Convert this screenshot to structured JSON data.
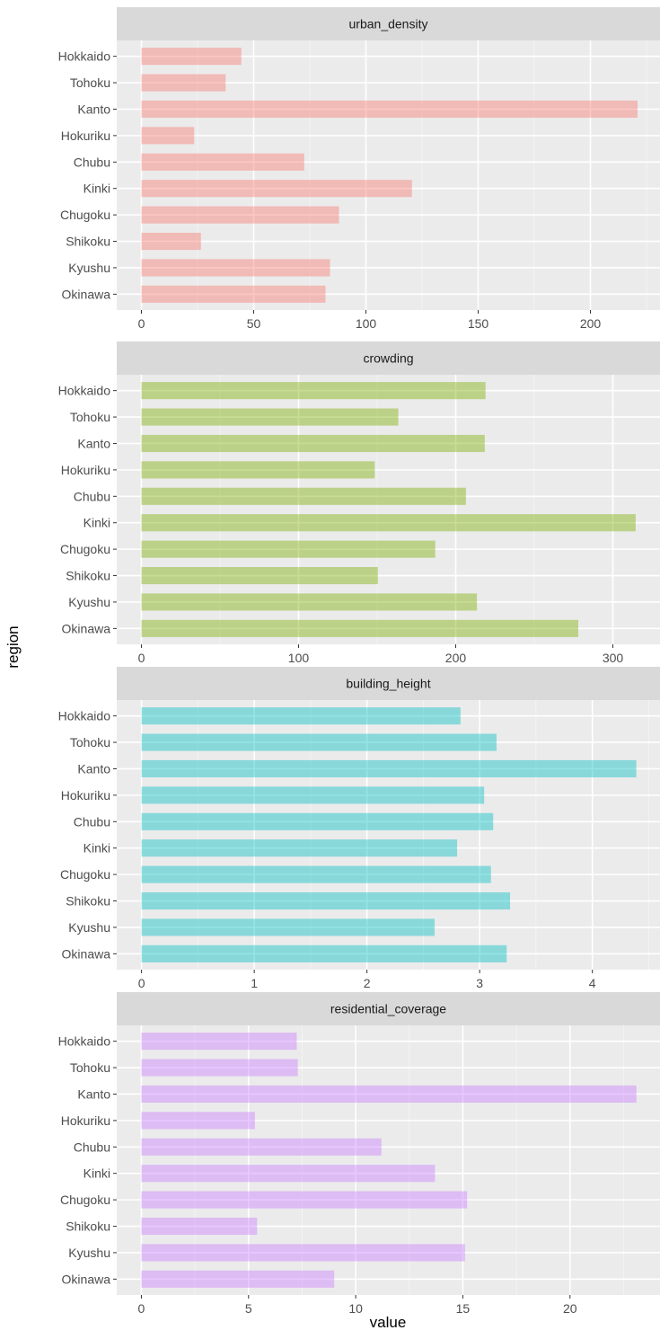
{
  "chart_data": {
    "type": "bar",
    "orientation": "horizontal",
    "faceted": true,
    "xlabel": "value",
    "ylabel": "region",
    "grid": true,
    "legend": "none",
    "categories": [
      "Hokkaido",
      "Tohoku",
      "Kanto",
      "Hokuriku",
      "Chubu",
      "Kinki",
      "Chugoku",
      "Shikoku",
      "Kyushu",
      "Okinawa"
    ],
    "panels": [
      {
        "name": "urban_density",
        "color": "#F8766D",
        "xlim": [
          -11,
          231
        ],
        "xticks": [
          0,
          50,
          100,
          150,
          200
        ],
        "values": [
          44.5,
          37.5,
          221,
          23.5,
          72.5,
          120.5,
          88,
          26.5,
          84,
          82
        ]
      },
      {
        "name": "crowding",
        "color": "#7CAE00",
        "xlim": [
          -15.7,
          330
        ],
        "xticks": [
          0,
          100,
          200,
          300
        ],
        "values": [
          219,
          163.5,
          218.5,
          148.5,
          206.5,
          314.5,
          187,
          150.5,
          213.5,
          278
        ]
      },
      {
        "name": "building_height",
        "color": "#00BFC4",
        "xlim": [
          -0.22,
          4.6
        ],
        "xticks": [
          0,
          1,
          2,
          3,
          4
        ],
        "values": [
          2.83,
          3.15,
          4.39,
          3.04,
          3.12,
          2.8,
          3.1,
          3.27,
          2.6,
          3.24
        ]
      },
      {
        "name": "residential_coverage",
        "color": "#C77CFF",
        "xlim": [
          -1.15,
          24.2
        ],
        "xticks": [
          0,
          5,
          10,
          15,
          20
        ],
        "values": [
          7.25,
          7.3,
          23.1,
          5.3,
          11.2,
          13.7,
          15.2,
          5.4,
          15.1,
          9.0
        ]
      }
    ]
  }
}
